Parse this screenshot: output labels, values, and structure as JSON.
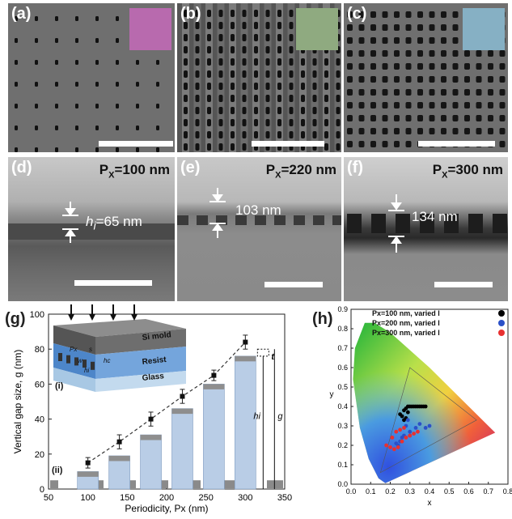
{
  "panels": {
    "a": {
      "label": "(a)",
      "swatch": "#b86aae"
    },
    "b": {
      "label": "(b)",
      "swatch": "#8faa80"
    },
    "c": {
      "label": "(c)",
      "swatch": "#86b0c4"
    },
    "d": {
      "label": "(d)",
      "px_prefix": "P",
      "px_sub": "X",
      "px_value": "=100 nm",
      "meas_prefix": "h",
      "meas_sub": "i",
      "meas_value": "=65 nm"
    },
    "e": {
      "label": "(e)",
      "px_prefix": "P",
      "px_sub": "X",
      "px_value": "=220 nm",
      "meas_value": "103 nm"
    },
    "f": {
      "label": "(f)",
      "px_prefix": "P",
      "px_sub": "X",
      "px_value": "=300 nm",
      "meas_value": "134 nm"
    }
  },
  "panel_g": {
    "label": "(g)",
    "inset_i": "(i)",
    "inset_ii": "(ii)",
    "layers": [
      "Si mold",
      "Resist",
      "Glass"
    ],
    "symbols": {
      "px": "Px",
      "s": "s",
      "w": "w",
      "hc": "hc",
      "hi": "hi",
      "t": "t",
      "hi_g": "hi",
      "g": "g"
    }
  },
  "panel_h": {
    "label": "(h)",
    "legend": [
      {
        "text": "Px=100 nm, varied l",
        "color": "#000000"
      },
      {
        "text": "Px=200 nm, varied l",
        "color": "#2b50c8"
      },
      {
        "text": "Px=300 nm, varied l",
        "color": "#e83030"
      }
    ]
  },
  "chart_data": [
    {
      "type": "bar",
      "title": "",
      "xlabel": "Periodicity, Px (nm)",
      "ylabel": "Vertical gap size, g (nm)",
      "xlim": [
        50,
        350
      ],
      "ylim": [
        0,
        100
      ],
      "xticks": [
        "50",
        "100",
        "150",
        "200",
        "250",
        "300",
        "350"
      ],
      "yticks": [
        "0",
        "20",
        "40",
        "60",
        "80",
        "100"
      ],
      "categories": [
        100,
        140,
        180,
        220,
        260,
        300
      ],
      "bars_hi": [
        10,
        19,
        31,
        46,
        60,
        76
      ],
      "points_g": [
        15,
        27,
        40,
        53,
        65,
        84
      ],
      "errors_g": [
        3,
        4,
        4,
        4,
        3,
        4
      ],
      "grid": false
    },
    {
      "type": "scatter",
      "title": "",
      "xlabel": "x",
      "ylabel": "y",
      "xlim": [
        0.0,
        0.8
      ],
      "ylim": [
        0.0,
        0.9
      ],
      "xticks": [
        "0.0",
        "0.1",
        "0.2",
        "0.3",
        "0.4",
        "0.5",
        "0.6",
        "0.7",
        "0.8"
      ],
      "yticks": [
        "0.0",
        "0.1",
        "0.2",
        "0.3",
        "0.4",
        "0.5",
        "0.6",
        "0.7",
        "0.8",
        "0.9"
      ],
      "series": [
        {
          "name": "Px=100 nm, varied l",
          "color": "#000000",
          "x": [
            0.25,
            0.27,
            0.28,
            0.29,
            0.3,
            0.31,
            0.32,
            0.33,
            0.34,
            0.35,
            0.36,
            0.37,
            0.38,
            0.29,
            0.28,
            0.27,
            0.26
          ],
          "y": [
            0.36,
            0.38,
            0.39,
            0.4,
            0.4,
            0.4,
            0.4,
            0.4,
            0.4,
            0.4,
            0.4,
            0.4,
            0.4,
            0.37,
            0.34,
            0.33,
            0.35
          ]
        },
        {
          "name": "Px=200 nm, varied l",
          "color": "#2b50c8",
          "x": [
            0.24,
            0.25,
            0.27,
            0.3,
            0.33,
            0.35,
            0.38,
            0.4,
            0.28,
            0.29,
            0.3,
            0.26,
            0.23
          ],
          "y": [
            0.2,
            0.22,
            0.25,
            0.27,
            0.29,
            0.31,
            0.29,
            0.3,
            0.3,
            0.33,
            0.25,
            0.24,
            0.21
          ]
        },
        {
          "name": "Px=300 nm, varied l",
          "color": "#e83030",
          "x": [
            0.18,
            0.2,
            0.22,
            0.24,
            0.26,
            0.28,
            0.3,
            0.32,
            0.34,
            0.21,
            0.23,
            0.25,
            0.27
          ],
          "y": [
            0.2,
            0.19,
            0.18,
            0.19,
            0.22,
            0.24,
            0.25,
            0.26,
            0.27,
            0.24,
            0.27,
            0.28,
            0.29
          ]
        }
      ]
    }
  ]
}
